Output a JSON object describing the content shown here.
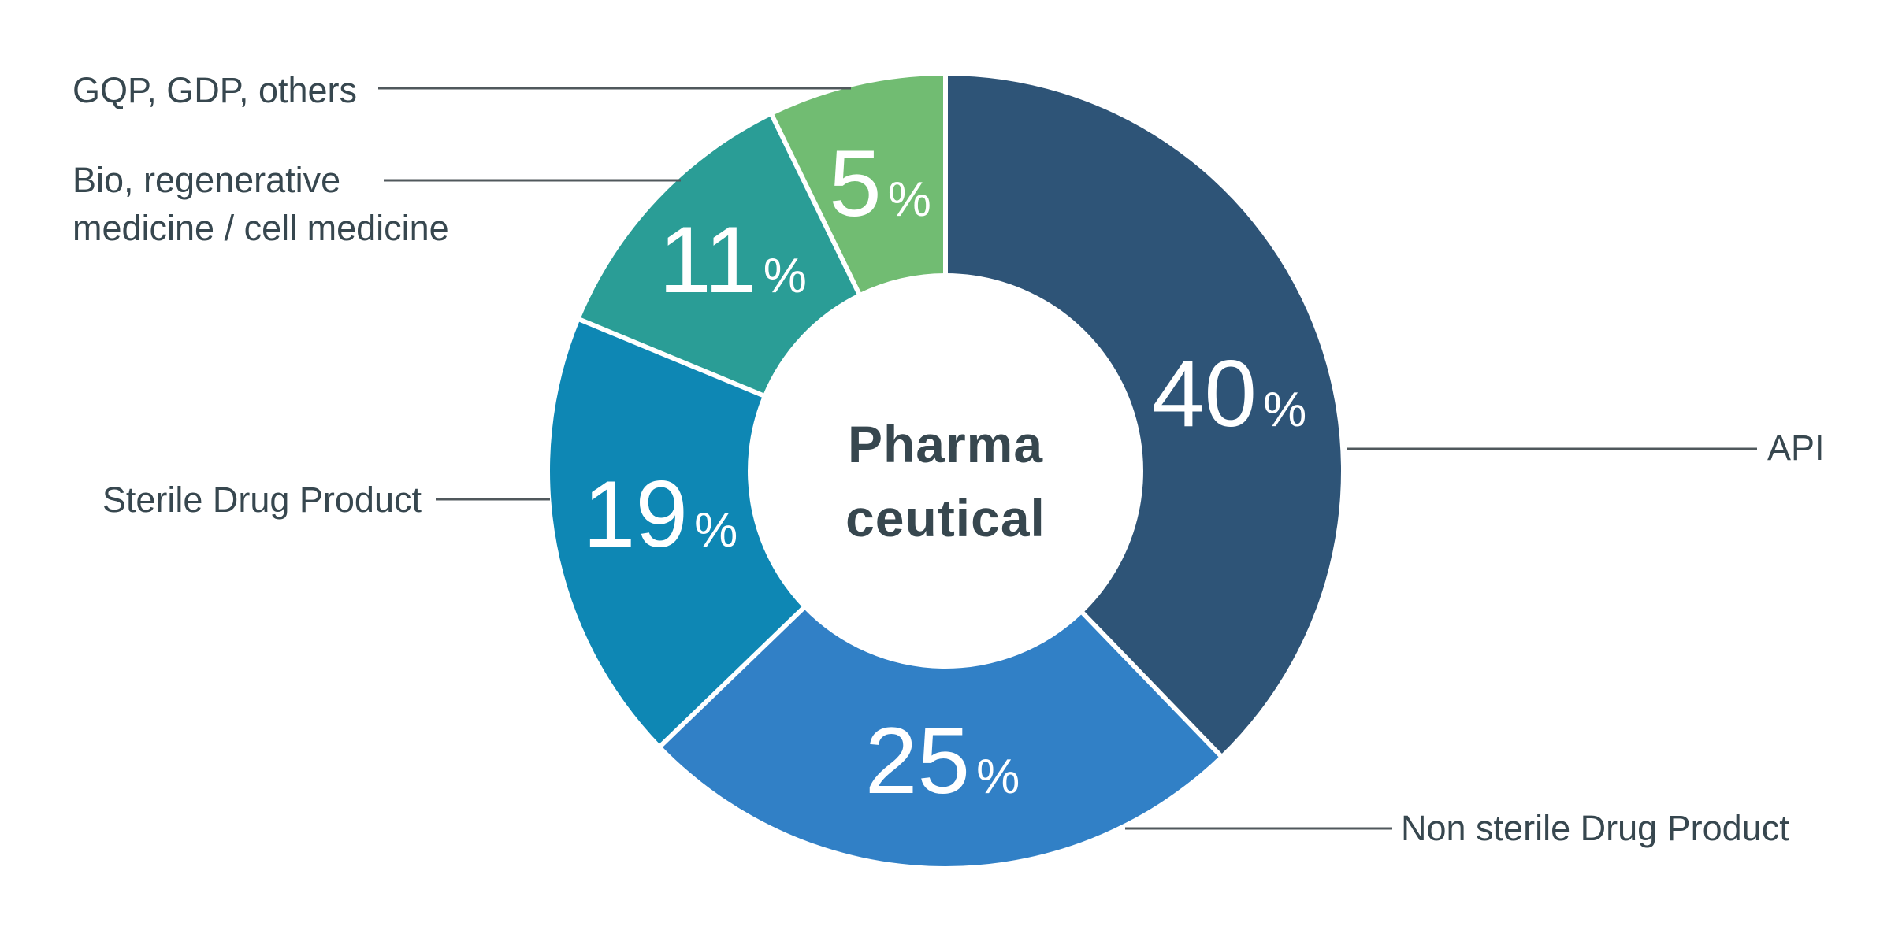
{
  "figure": {
    "background": "#ffffff",
    "text_color": "#37474f",
    "leader_line_color": "#50585c",
    "center_label": {
      "line1": "Pharma",
      "line2": "ceutical"
    }
  },
  "chart_data": {
    "type": "pie",
    "variant": "donut",
    "units": "%",
    "direction": "clockwise",
    "start_angle_deg": 0,
    "legend_position": "callouts",
    "center_label": "Pharma ceutical",
    "categories": [
      "API",
      "Non sterile Drug Product",
      "Sterile Drug Product",
      "Bio, regenerative medicine / cell medicine",
      "GQP, GDP, others"
    ],
    "values": [
      40,
      25,
      19,
      11,
      5
    ],
    "segments": [
      {
        "id": "api",
        "label": "API",
        "value": 40,
        "color": "#2e5477",
        "drawn_sweep_deg": 136,
        "callout_side": "right"
      },
      {
        "id": "non-sterile",
        "label": "Non sterile Drug Product",
        "value": 25,
        "color": "#3180c6",
        "drawn_sweep_deg": 90,
        "callout_side": "right"
      },
      {
        "id": "sterile",
        "label": "Sterile Drug Product",
        "value": 19,
        "color": "#0e87b4",
        "drawn_sweep_deg": 66.5,
        "callout_side": "left"
      },
      {
        "id": "bio",
        "label": "Bio, regenerative medicine / cell medicine",
        "value": 11,
        "color": "#2a9d96",
        "drawn_sweep_deg": 41.5,
        "callout_side": "left"
      },
      {
        "id": "gqp",
        "label": "GQP, GDP, others",
        "value": 5,
        "color": "#71bc72",
        "drawn_sweep_deg": 26,
        "callout_side": "left"
      }
    ]
  },
  "callouts": {
    "gqp": {
      "text": "GQP, GDP, others"
    },
    "bio": {
      "line1": "Bio, regenerative",
      "line2": "medicine / cell medicine"
    },
    "sterile": {
      "text": "Sterile Drug Product"
    },
    "api": {
      "text": "API"
    },
    "non_sterile": {
      "text": "Non sterile Drug Product"
    }
  }
}
